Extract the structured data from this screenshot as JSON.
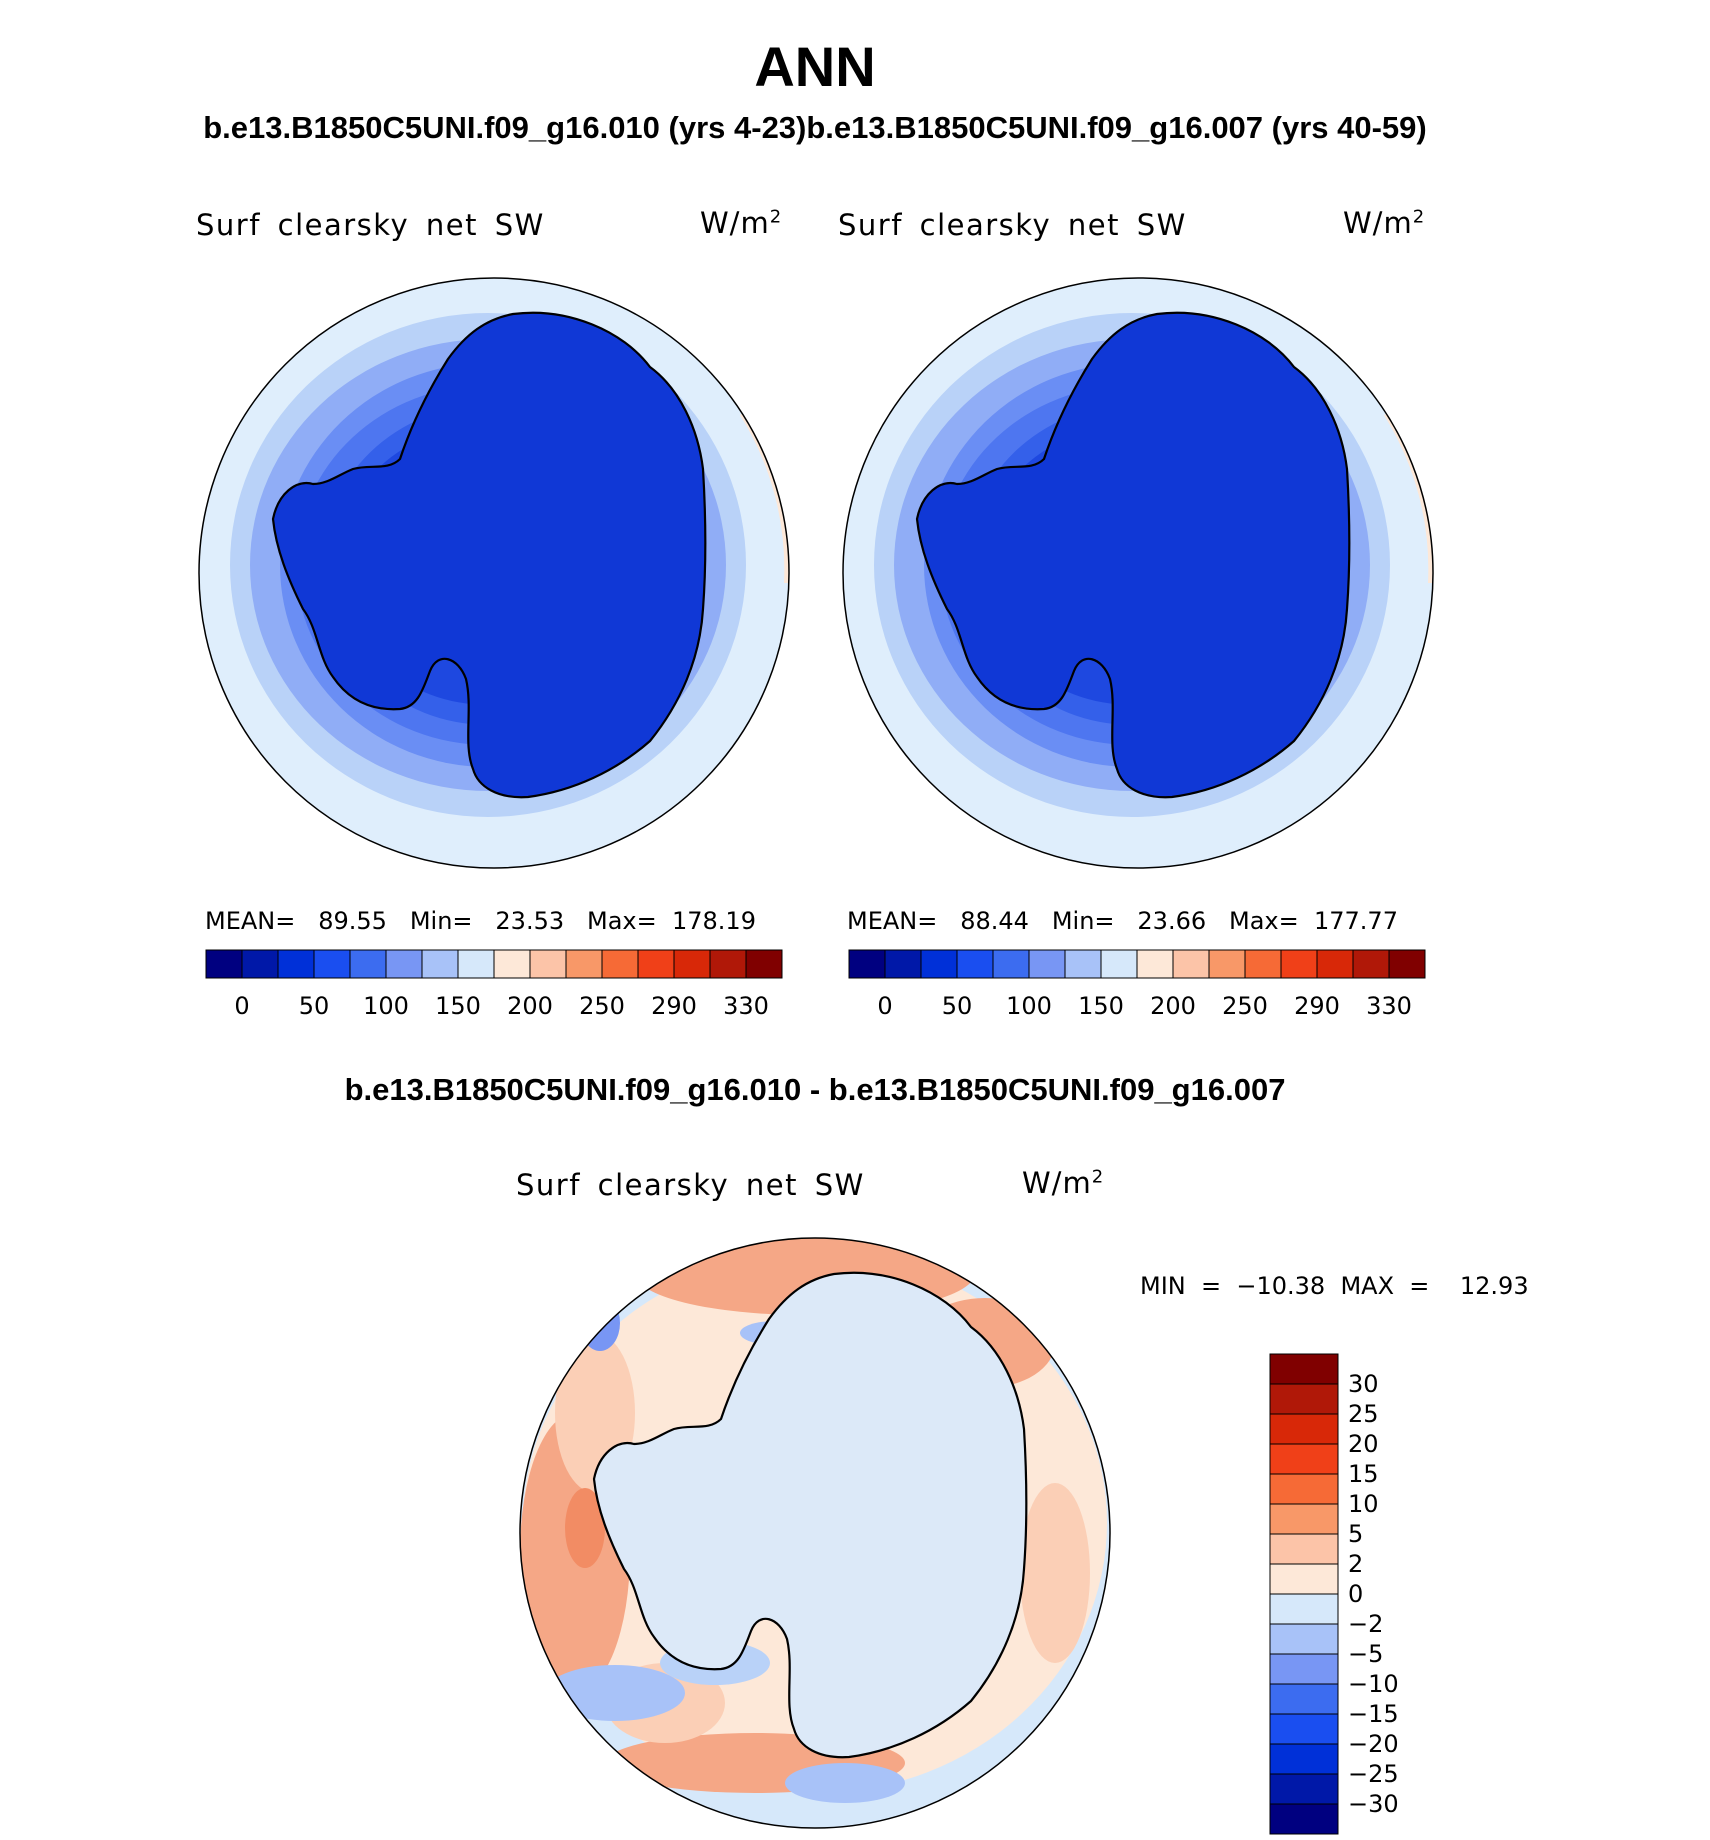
{
  "page": {
    "title": "ANN",
    "subtitle_left": "b.e13.B1850C5UNI.f09_g16.010 (yrs 4-23)",
    "subtitle_right": "b.e13.B1850C5UNI.f09_g16.007 (yrs 40-59)"
  },
  "panels": [
    {
      "variable": "Surf  clearsky  net  SW",
      "units": "W/m",
      "units_exp": "2",
      "stats": "MEAN=   89.55   Min=   23.53   Max=  178.19"
    },
    {
      "variable": "Surf  clearsky  net  SW",
      "units": "W/m",
      "units_exp": "2",
      "stats": "MEAN=   88.44   Min=   23.66   Max=  177.77"
    }
  ],
  "diff_panel": {
    "title": "b.e13.B1850C5UNI.f09_g16.010 - b.e13.B1850C5UNI.f09_g16.007",
    "variable": "Surf  clearsky  net  SW",
    "units": "W/m",
    "units_exp": "2",
    "stats": "MIN  =  −10.38  MAX  =    12.93"
  },
  "legend_top": {
    "colors": [
      "#000080",
      "#0018a8",
      "#0030d8",
      "#1a4ef0",
      "#3c6cf0",
      "#7896f4",
      "#a8c2f8",
      "#d6e8fa",
      "#fde8d8",
      "#fcc4a8",
      "#f89868",
      "#f66a36",
      "#f04018",
      "#d82808",
      "#b01808",
      "#800000"
    ],
    "tick_labels": [
      "0",
      "50",
      "100",
      "150",
      "200",
      "250",
      "290",
      "330"
    ]
  },
  "legend_diff": {
    "colors": [
      "#800000",
      "#b01808",
      "#d82808",
      "#f04018",
      "#f66a36",
      "#f89868",
      "#fcc4a8",
      "#fde8d8",
      "#d6e8fa",
      "#a8c2f8",
      "#7896f4",
      "#3c6cf0",
      "#1a4ef0",
      "#0030d8",
      "#0018a8",
      "#000080"
    ],
    "tick_labels": [
      "30",
      "25",
      "20",
      "15",
      "10",
      "5",
      "2",
      "0",
      "−2",
      "−5",
      "−10",
      "−15",
      "−20",
      "−25",
      "−30"
    ]
  },
  "map_palette": {
    "abs": [
      "#dfeefc",
      "#b9d2f8",
      "#90adf6",
      "#6a8ef4",
      "#4e76f0",
      "#3460ea",
      "#1e48e0",
      "#1038d6"
    ],
    "diff": [
      "#d6e8fa",
      "#fde8d8",
      "#fbcfb6",
      "#f5a786",
      "#f28c64"
    ]
  }
}
